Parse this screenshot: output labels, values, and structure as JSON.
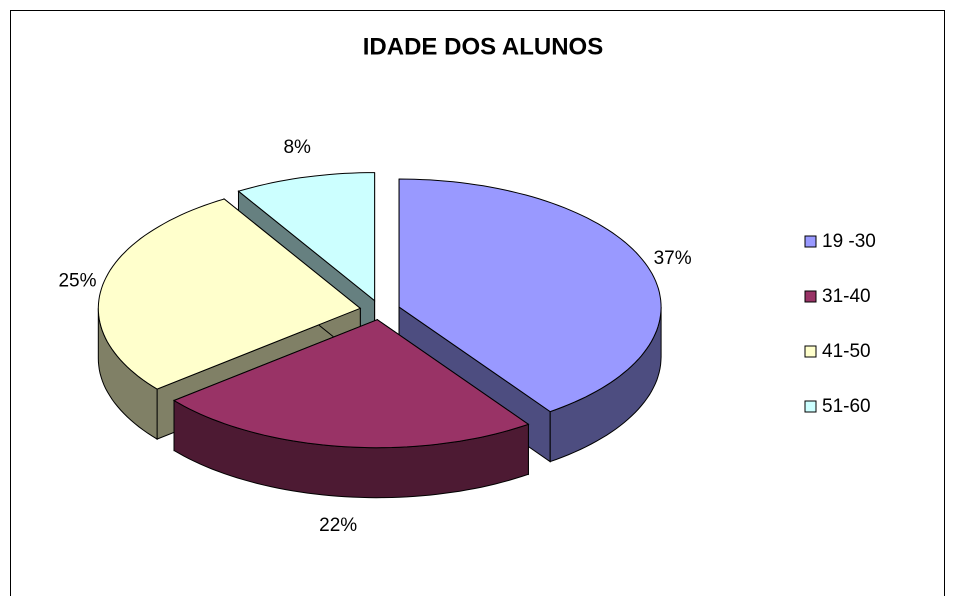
{
  "chart_data": {
    "type": "pie",
    "title": "IDADE DOS ALUNOS",
    "categories": [
      "19 -30",
      "31-40",
      "41-50",
      "51-60"
    ],
    "values": [
      37,
      22,
      25,
      8
    ],
    "value_labels": [
      "37%",
      "22%",
      "25%",
      "8%"
    ],
    "colors": [
      "#9999ff",
      "#993366",
      "#ffffcc",
      "#ccffff"
    ],
    "legend": "right"
  }
}
